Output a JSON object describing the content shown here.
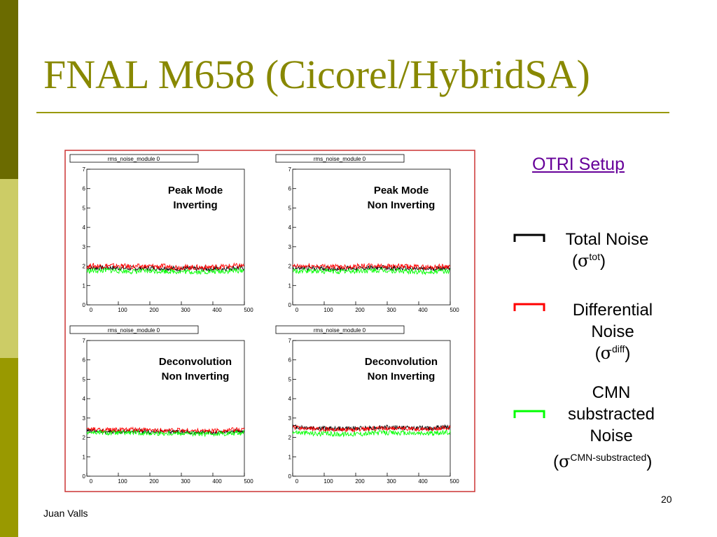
{
  "slide": {
    "title": "FNAL M658 (Cicorel/HybridSA)",
    "author": "Juan Valls",
    "page_number": "20",
    "colors": {
      "title": "#888800",
      "band_dark": "#6b6b00",
      "band_light": "#cccc66",
      "band_mid": "#999900",
      "figure_border": "#cc3333",
      "link": "#660099"
    }
  },
  "sidebar": {
    "link_label": "OTRI Setup",
    "legend": [
      {
        "label_lines": [
          "Total Noise"
        ],
        "symbol": "σ",
        "superscript": "tot",
        "color": "#000000"
      },
      {
        "label_lines": [
          "Differential",
          "Noise"
        ],
        "symbol": "σ",
        "superscript": "diff",
        "color": "#ff0000"
      },
      {
        "label_lines": [
          "CMN",
          "substracted",
          "Noise"
        ],
        "symbol": "σ",
        "superscript": "CMN-substracted",
        "color": "#00ff00"
      }
    ]
  },
  "chart_data": [
    {
      "type": "line",
      "stat_box": "rms_noise_module 0",
      "annotation": [
        "Peak Mode",
        "Inverting"
      ],
      "xlim": [
        0,
        500
      ],
      "ylim": [
        0,
        7
      ],
      "x_ticks": [
        "0",
        "100",
        "200",
        "300",
        "400",
        "500"
      ],
      "y_ticks": [
        "0",
        "1",
        "2",
        "3",
        "4",
        "5",
        "6",
        "7"
      ],
      "series": [
        {
          "color": "#000000",
          "mean": 1.9,
          "values": [
            1.9,
            1.92,
            1.88,
            1.9,
            1.87,
            1.85,
            1.88,
            1.92
          ],
          "noise": 0.13
        },
        {
          "color": "#ff0000",
          "mean": 2.0,
          "values": [
            2.0,
            2.02,
            1.97,
            1.99,
            1.95,
            1.93,
            1.97,
            2.03
          ],
          "noise": 0.14
        },
        {
          "color": "#00ff00",
          "mean": 1.75,
          "values": [
            1.75,
            1.78,
            1.72,
            1.75,
            1.72,
            1.7,
            1.73,
            1.78
          ],
          "noise": 0.13
        }
      ]
    },
    {
      "type": "line",
      "stat_box": "rms_noise_module 0",
      "annotation": [
        "Peak Mode",
        "Non Inverting"
      ],
      "xlim": [
        0,
        500
      ],
      "ylim": [
        0,
        7
      ],
      "x_ticks": [
        "0",
        "100",
        "200",
        "300",
        "400",
        "500"
      ],
      "y_ticks": [
        "0",
        "1",
        "2",
        "3",
        "4",
        "5",
        "6",
        "7"
      ],
      "series": [
        {
          "color": "#000000",
          "mean": 1.88,
          "values": [
            1.88,
            1.9,
            1.87,
            1.9,
            1.92,
            1.87,
            1.85,
            1.9
          ],
          "noise": 0.12
        },
        {
          "color": "#ff0000",
          "mean": 1.98,
          "values": [
            1.98,
            2.0,
            1.96,
            2.0,
            2.02,
            1.97,
            1.94,
            2.0
          ],
          "noise": 0.13
        },
        {
          "color": "#00ff00",
          "mean": 1.73,
          "values": [
            1.73,
            1.75,
            1.72,
            1.75,
            1.77,
            1.72,
            1.7,
            1.75
          ],
          "noise": 0.13
        }
      ]
    },
    {
      "type": "line",
      "stat_box": "rms_noise_module 0",
      "annotation": [
        "Deconvolution",
        "Non Inverting"
      ],
      "xlim": [
        0,
        500
      ],
      "ylim": [
        0,
        7
      ],
      "x_ticks": [
        "0",
        "100",
        "200",
        "300",
        "400",
        "500"
      ],
      "y_ticks": [
        "0",
        "1",
        "2",
        "3",
        "4",
        "5",
        "6",
        "7"
      ],
      "series": [
        {
          "color": "#000000",
          "mean": 2.3,
          "values": [
            2.35,
            2.3,
            2.32,
            2.28,
            2.3,
            2.25,
            2.28,
            2.33
          ],
          "noise": 0.11
        },
        {
          "color": "#ff0000",
          "mean": 2.38,
          "values": [
            2.42,
            2.38,
            2.4,
            2.36,
            2.38,
            2.33,
            2.36,
            2.42
          ],
          "noise": 0.12
        },
        {
          "color": "#00ff00",
          "mean": 2.22,
          "values": [
            2.27,
            2.22,
            2.24,
            2.2,
            2.22,
            2.17,
            2.2,
            2.25
          ],
          "noise": 0.12
        }
      ]
    },
    {
      "type": "line",
      "stat_box": "rms_noise_module 0",
      "annotation": [
        "Deconvolution",
        "Non Inverting"
      ],
      "xlim": [
        0,
        500
      ],
      "ylim": [
        0,
        7
      ],
      "x_ticks": [
        "0",
        "100",
        "200",
        "300",
        "400",
        "500"
      ],
      "y_ticks": [
        "0",
        "1",
        "2",
        "3",
        "4",
        "5",
        "6",
        "7"
      ],
      "series": [
        {
          "color": "#000000",
          "mean": 2.5,
          "values": [
            2.55,
            2.48,
            2.45,
            2.47,
            2.52,
            2.5,
            2.47,
            2.55
          ],
          "noise": 0.12
        },
        {
          "color": "#ff0000",
          "mean": 2.45,
          "values": [
            2.5,
            2.43,
            2.4,
            2.42,
            2.47,
            2.45,
            2.42,
            2.5
          ],
          "noise": 0.12
        },
        {
          "color": "#00ff00",
          "mean": 2.22,
          "values": [
            2.28,
            2.2,
            2.17,
            2.19,
            2.25,
            2.22,
            2.2,
            2.27
          ],
          "noise": 0.13
        }
      ]
    }
  ]
}
